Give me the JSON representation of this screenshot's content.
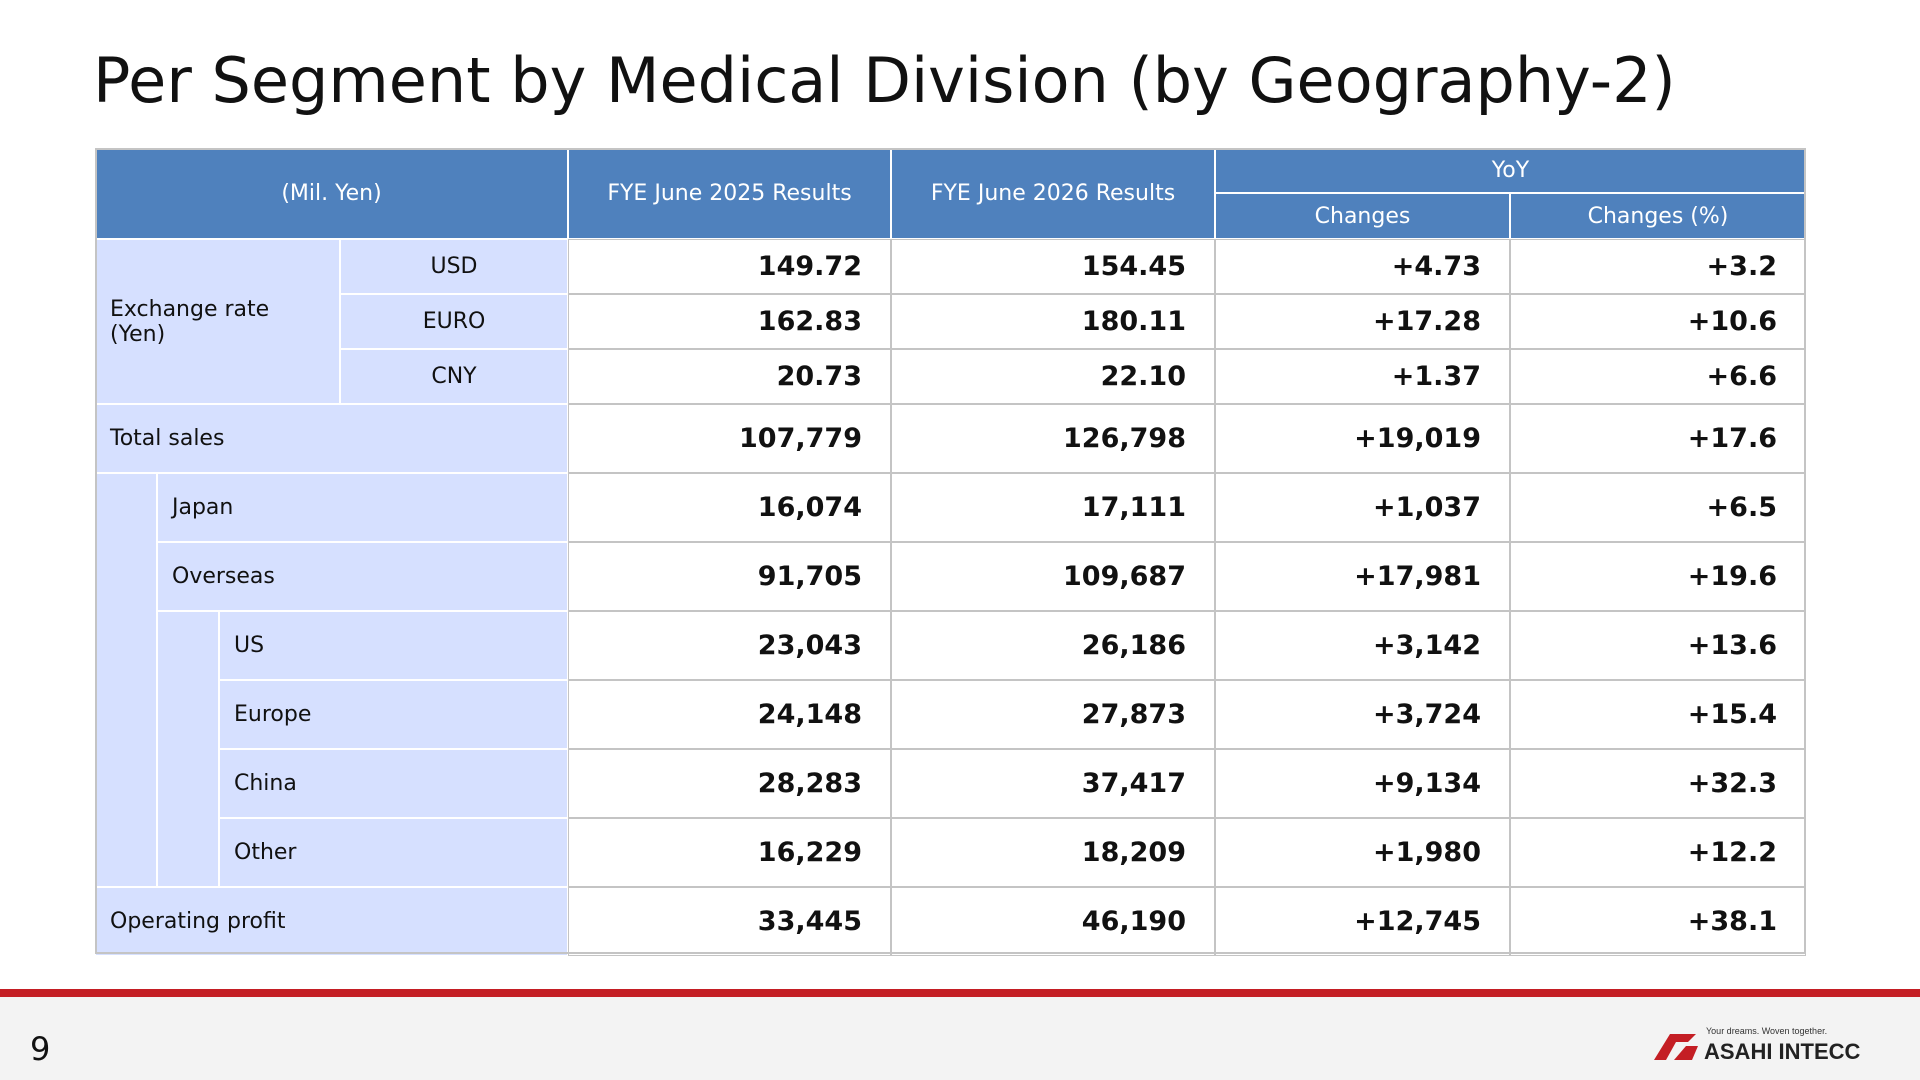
{
  "title": "Per Segment by Medical Division (by Geography-2)",
  "table": {
    "header": {
      "unit": "(Mil. Yen)",
      "columns": [
        "FYE June 2025 Results",
        "FYE June 2026 Results"
      ],
      "yoy": "YoY",
      "yoy_columns": [
        "Changes",
        "Changes (%)"
      ]
    },
    "exchange_rate": {
      "label": "Exchange rate\n(Yen)",
      "rows": [
        {
          "label": "USD",
          "values": [
            "149.72",
            "154.45",
            "+4.73",
            "+3.2"
          ]
        },
        {
          "label": "EURO",
          "values": [
            "162.83",
            "180.11",
            "+17.28",
            "+10.6"
          ]
        },
        {
          "label": "CNY",
          "values": [
            "20.73",
            "22.10",
            "+1.37",
            "+6.6"
          ]
        }
      ]
    },
    "total_sales": {
      "label": "Total sales",
      "values": [
        "107,779",
        "126,798",
        "+19,019",
        "+17.6"
      ],
      "children": [
        {
          "label": "Japan",
          "values": [
            "16,074",
            "17,111",
            "+1,037",
            "+6.5"
          ]
        },
        {
          "label": "Overseas",
          "values": [
            "91,705",
            "109,687",
            "+17,981",
            "+19.6"
          ],
          "children": [
            {
              "label": "US",
              "values": [
                "23,043",
                "26,186",
                "+3,142",
                "+13.6"
              ]
            },
            {
              "label": "Europe",
              "values": [
                "24,148",
                "27,873",
                "+3,724",
                "+15.4"
              ]
            },
            {
              "label": "China",
              "values": [
                "28,283",
                "37,417",
                "+9,134",
                "+32.3"
              ]
            },
            {
              "label": "Other",
              "values": [
                "16,229",
                "18,209",
                "+1,980",
                "+12.2"
              ]
            }
          ]
        }
      ]
    },
    "operating_profit": {
      "label": "Operating profit",
      "values": [
        "33,445",
        "46,190",
        "+12,745",
        "+38.1"
      ]
    }
  },
  "footer": {
    "page_number": "9",
    "logo_tagline": "Your dreams. Woven together.",
    "logo_name": "ASAHI INTECC"
  }
}
